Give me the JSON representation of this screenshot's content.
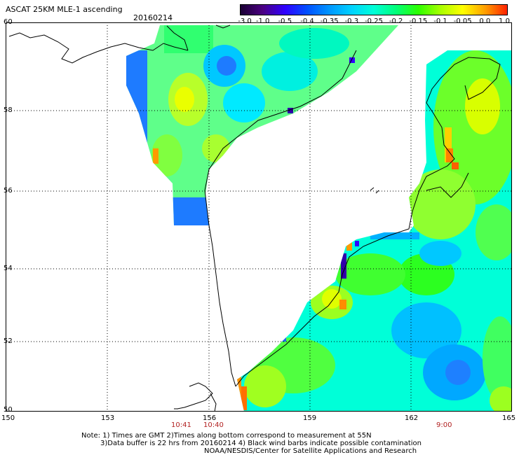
{
  "header": {
    "title": "ASCAT 25KM MLE-1 ascending",
    "date": "20160214"
  },
  "colorbar": {
    "labels": [
      "-3.0",
      "-1.0",
      "-0.5",
      "-0.4",
      "-0.35",
      "-0.3",
      "-0.25",
      "-0.2",
      "-0.15",
      "-0.1",
      "-0.05",
      "0.0",
      "1.0"
    ],
    "colors": [
      "#1a0033",
      "#4b0082",
      "#2f00ff",
      "#0050ff",
      "#0096ff",
      "#00d2ff",
      "#00ffd8",
      "#00ff7a",
      "#2cff00",
      "#a8ff00",
      "#ffff00",
      "#ffa000",
      "#ff2200"
    ]
  },
  "axes": {
    "x_ticks": [
      "150",
      "153",
      "156",
      "159",
      "162",
      "165"
    ],
    "y_ticks": [
      "60",
      "58",
      "56",
      "54",
      "52",
      "50"
    ]
  },
  "times": [
    "10:41",
    "10:40",
    "9:00"
  ],
  "notes": {
    "line1": "Note: 1) Times are GMT 2)Times along bottom correspond to measurement at 55N",
    "line2": "3)Data buffer is 22 hrs from 20160214 4) Black wind barbs indicate possible contamination",
    "line3": "NOAA/NESDIS/Center for Satellite Applications and Research"
  }
}
